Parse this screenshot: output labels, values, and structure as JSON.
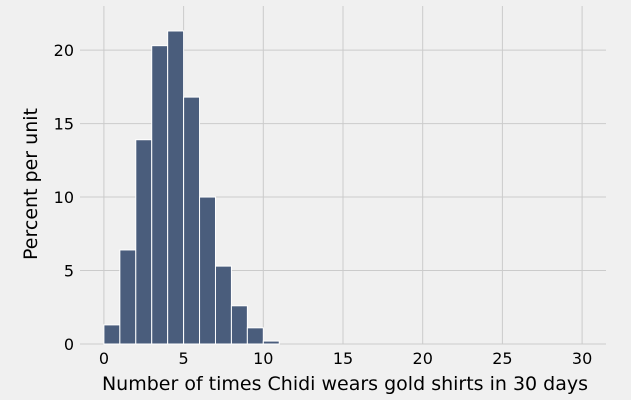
{
  "chart_data": {
    "type": "bar",
    "xlabel": "Number of times Chidi wears gold shirts in 30 days",
    "ylabel": "Percent per unit",
    "xlim": [
      -1.5,
      31.5
    ],
    "ylim": [
      0,
      23
    ],
    "xticks": [
      0,
      5,
      10,
      15,
      20,
      25,
      30
    ],
    "yticks": [
      0,
      5,
      10,
      15,
      20
    ],
    "grid": true,
    "bin_width": 1,
    "bins": [
      {
        "x": 0,
        "value": 1.3
      },
      {
        "x": 1,
        "value": 6.4
      },
      {
        "x": 2,
        "value": 13.9
      },
      {
        "x": 3,
        "value": 20.3
      },
      {
        "x": 4,
        "value": 21.3
      },
      {
        "x": 5,
        "value": 16.8
      },
      {
        "x": 6,
        "value": 10.0
      },
      {
        "x": 7,
        "value": 5.3
      },
      {
        "x": 8,
        "value": 2.6
      },
      {
        "x": 9,
        "value": 1.1
      },
      {
        "x": 10,
        "value": 0.2
      }
    ],
    "colors": {
      "bar_fill": "#4a5d7c",
      "bar_edge": "#ffffff",
      "plot_background": "#f0f0f0",
      "grid": "#cbcbcb"
    }
  }
}
